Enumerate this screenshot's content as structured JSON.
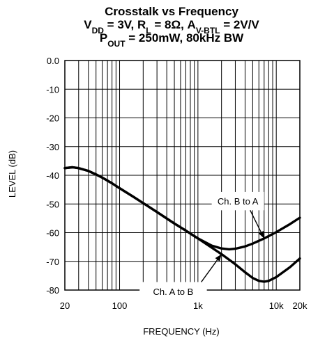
{
  "chart_data": {
    "type": "line",
    "title": "Crosstalk vs Frequency",
    "subtitle_parts": {
      "line2": [
        {
          "t": "V",
          "sub": false
        },
        {
          "t": "DD",
          "sub": true
        },
        {
          "t": " = 3V, R",
          "sub": false
        },
        {
          "t": "L",
          "sub": true
        },
        {
          "t": " = 8Ω, A",
          "sub": false
        },
        {
          "t": "V-BTL",
          "sub": true
        },
        {
          "t": " = 2V/V",
          "sub": false
        }
      ],
      "line3": [
        {
          "t": "P",
          "sub": false
        },
        {
          "t": "OUT",
          "sub": true
        },
        {
          "t": " = 250mW, 80kHz BW",
          "sub": false
        }
      ]
    },
    "xlabel": "FREQUENCY (Hz)",
    "ylabel": "LEVEL (dB)",
    "x_scale": "log",
    "xlim": [
      20,
      20000
    ],
    "ylim": [
      -80,
      0
    ],
    "grid": true,
    "x_tick_labels": [
      {
        "value": 20,
        "label": "20"
      },
      {
        "value": 100,
        "label": "100"
      },
      {
        "value": 1000,
        "label": "1k"
      },
      {
        "value": 10000,
        "label": "10k"
      },
      {
        "value": 20000,
        "label": "20k"
      }
    ],
    "y_ticks": [
      0,
      -10,
      -20,
      -30,
      -40,
      -50,
      -60,
      -70,
      -80
    ],
    "y_tick_labels": [
      "0.0",
      "-10",
      "-20",
      "-30",
      "-40",
      "-50",
      "-60",
      "-70",
      "-80"
    ],
    "series": [
      {
        "name": "Ch. B to A",
        "x": [
          20,
          25,
          30,
          40,
          50,
          60,
          80,
          100,
          150,
          200,
          300,
          500,
          700,
          1000,
          1500,
          2000,
          2500,
          3000,
          4000,
          5000,
          7000,
          10000,
          15000,
          20000
        ],
        "y": [
          -37.5,
          -37.2,
          -37.5,
          -38.5,
          -39.7,
          -40.8,
          -42.8,
          -44.5,
          -47.5,
          -49.7,
          -52.8,
          -56.8,
          -59.3,
          -62,
          -64.5,
          -65.5,
          -65.8,
          -65.6,
          -64.8,
          -63.8,
          -62,
          -59.8,
          -57,
          -54.8
        ]
      },
      {
        "name": "Ch. A to B",
        "x": [
          20,
          25,
          30,
          40,
          50,
          60,
          80,
          100,
          150,
          200,
          300,
          500,
          700,
          1000,
          1500,
          2000,
          3000,
          4000,
          5000,
          6000,
          7000,
          8000,
          10000,
          15000,
          20000
        ],
        "y": [
          -37.5,
          -37.2,
          -37.5,
          -38.5,
          -39.7,
          -40.8,
          -42.8,
          -44.5,
          -47.5,
          -49.7,
          -52.8,
          -56.8,
          -59.3,
          -62,
          -65.2,
          -67.5,
          -71,
          -73.8,
          -75.8,
          -76.8,
          -77.1,
          -76.8,
          -75.5,
          -72,
          -69
        ]
      }
    ],
    "annotations": [
      {
        "text": "Ch. B to A",
        "series": "Ch. B to A",
        "box": {
          "x": [
            1500,
            7000
          ],
          "y": [
            -45.8,
            -52.2
          ]
        },
        "arrow_to": {
          "x": 7000,
          "y": -62
        }
      },
      {
        "text": "Ch. A to B",
        "series": "Ch. A to B",
        "box": {
          "x": [
            180,
            1300
          ],
          "y": [
            -77.2,
            -83.8
          ]
        },
        "arrow_to": {
          "x": 2000,
          "y": -67.5
        }
      }
    ]
  }
}
